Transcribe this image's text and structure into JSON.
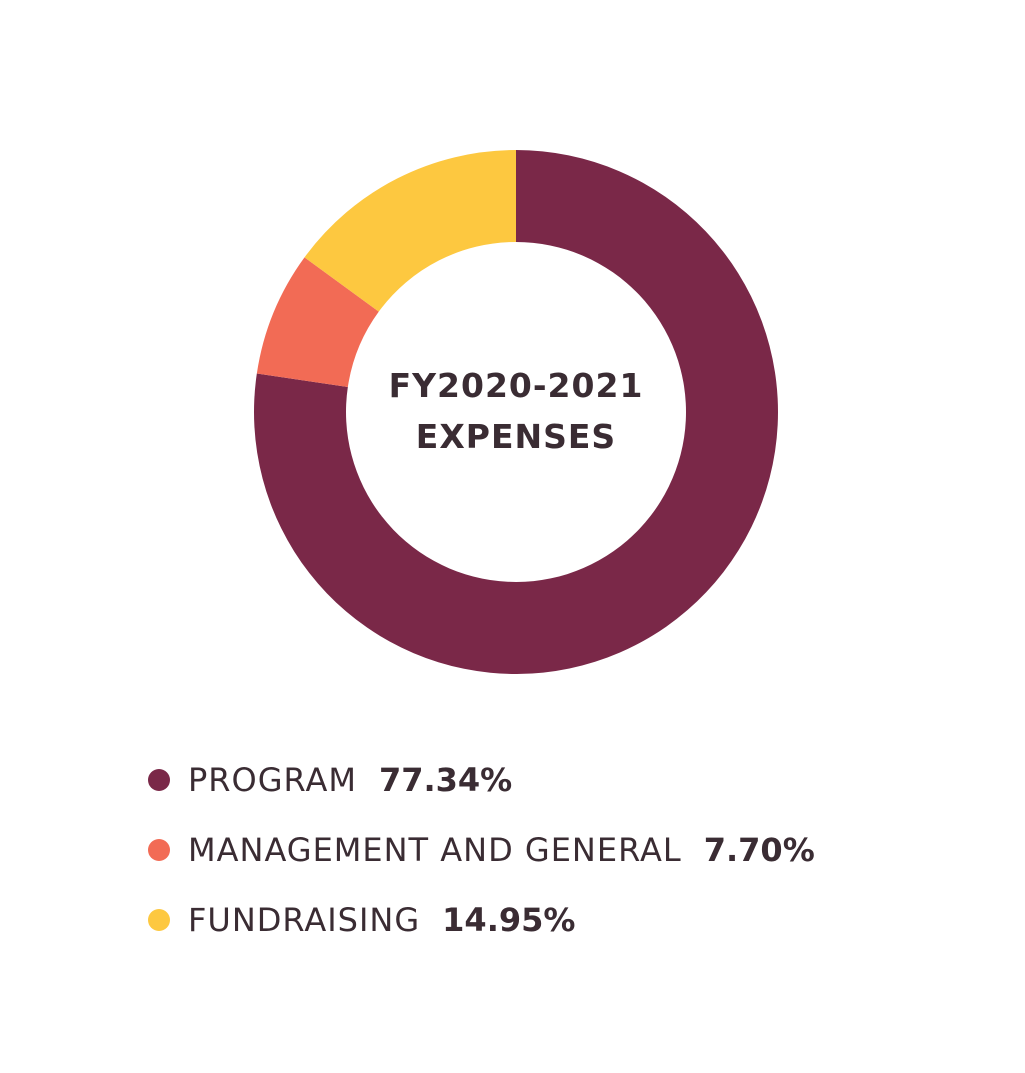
{
  "chart_data": {
    "type": "pie",
    "title_lines": [
      "FY2020-2021",
      "EXPENSES"
    ],
    "donut": true,
    "legend_position": "bottom",
    "slices": [
      {
        "label": "PROGRAM",
        "value": 77.34,
        "value_label": "77.34%",
        "color": "#7a2848"
      },
      {
        "label": "MANAGEMENT AND GENERAL",
        "value": 7.7,
        "value_label": "7.70%",
        "color": "#f26b55"
      },
      {
        "label": "FUNDRAISING",
        "value": 14.95,
        "value_label": "14.95%",
        "color": "#fdc840"
      }
    ]
  }
}
